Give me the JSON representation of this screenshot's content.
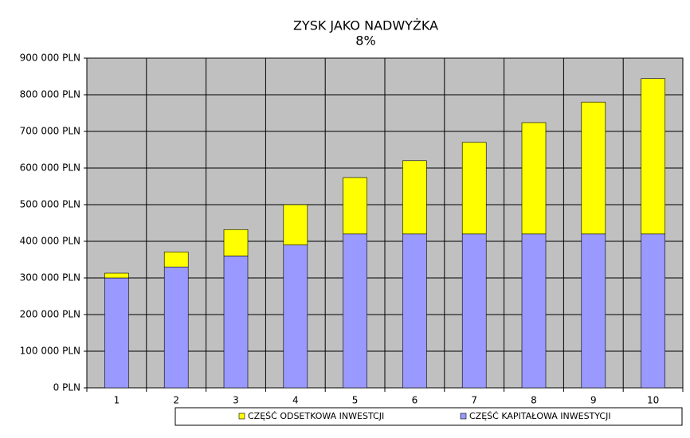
{
  "chart_data": {
    "type": "stacked-bar",
    "title": "ZYSK JAKO NADWYŻKA",
    "subtitle": "8%",
    "categories": [
      "1",
      "2",
      "3",
      "4",
      "5",
      "6",
      "7",
      "8",
      "9",
      "10"
    ],
    "series": [
      {
        "name": "CZĘŚĆ ODSETKOWA INWESTCJI",
        "color": "#ffff00",
        "values": [
          13000,
          41000,
          72000,
          110000,
          154000,
          200000,
          250000,
          304000,
          360000,
          424000
        ]
      },
      {
        "name": "CZĘŚĆ KAPITAŁOWA INWESTYCJI",
        "color": "#9999ff",
        "values": [
          300000,
          330000,
          360000,
          390000,
          420000,
          420000,
          420000,
          420000,
          420000,
          420000
        ]
      }
    ],
    "ylim": [
      0,
      900000
    ],
    "yticks": [
      {
        "value": 0,
        "label": "0 PLN"
      },
      {
        "value": 100000,
        "label": "100 000 PLN"
      },
      {
        "value": 200000,
        "label": "200 000 PLN"
      },
      {
        "value": 300000,
        "label": "300 000 PLN"
      },
      {
        "value": 400000,
        "label": "400 000 PLN"
      },
      {
        "value": 500000,
        "label": "500 000 PLN"
      },
      {
        "value": 600000,
        "label": "600 000 PLN"
      },
      {
        "value": 700000,
        "label": "700 000 PLN"
      },
      {
        "value": 800000,
        "label": "800 000 PLN"
      },
      {
        "value": 900000,
        "label": "900 000 PLN"
      }
    ],
    "grid": true,
    "legend": "bottom",
    "plot_background": "#c0c0c0"
  }
}
